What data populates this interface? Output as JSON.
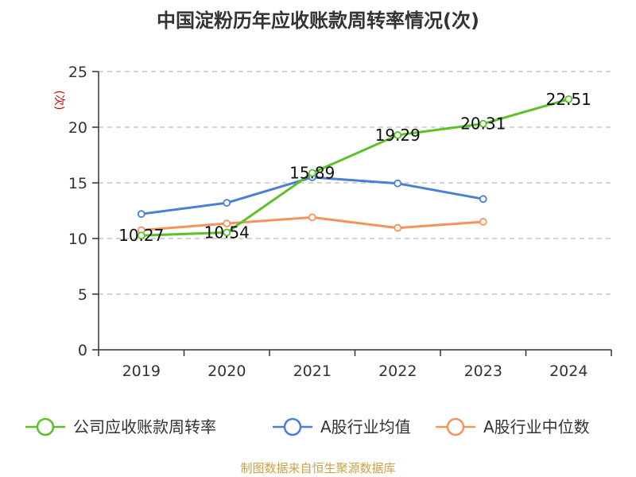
{
  "chart_data": {
    "type": "line",
    "title": "中国淀粉历年应收账款周转率情况(次)",
    "ylabel": "(次)",
    "xlabel": "",
    "categories": [
      "2019",
      "2020",
      "2021",
      "2022",
      "2023",
      "2024"
    ],
    "ylim": [
      0,
      25
    ],
    "yticks": [
      0,
      5,
      10,
      15,
      20,
      25
    ],
    "grid": true,
    "legend_position": "bottom",
    "series": [
      {
        "name": "公司应收账款周转率",
        "color": "#5cc02a",
        "values": [
          10.27,
          10.54,
          15.89,
          19.29,
          20.31,
          22.51
        ],
        "labels": [
          "10.27",
          "10.54",
          "15.89",
          "19.29",
          "20.31",
          "22.51"
        ]
      },
      {
        "name": "A股行业均值",
        "color": "#4a7fd6",
        "values": [
          12.2,
          13.2,
          15.5,
          14.95,
          13.55,
          null
        ]
      },
      {
        "name": "A股行业中位数",
        "color": "#f4945c",
        "values": [
          10.75,
          11.35,
          11.9,
          10.95,
          11.5,
          null
        ]
      }
    ]
  },
  "footer": {
    "source": "制图数据来自恒生聚源数据库"
  }
}
